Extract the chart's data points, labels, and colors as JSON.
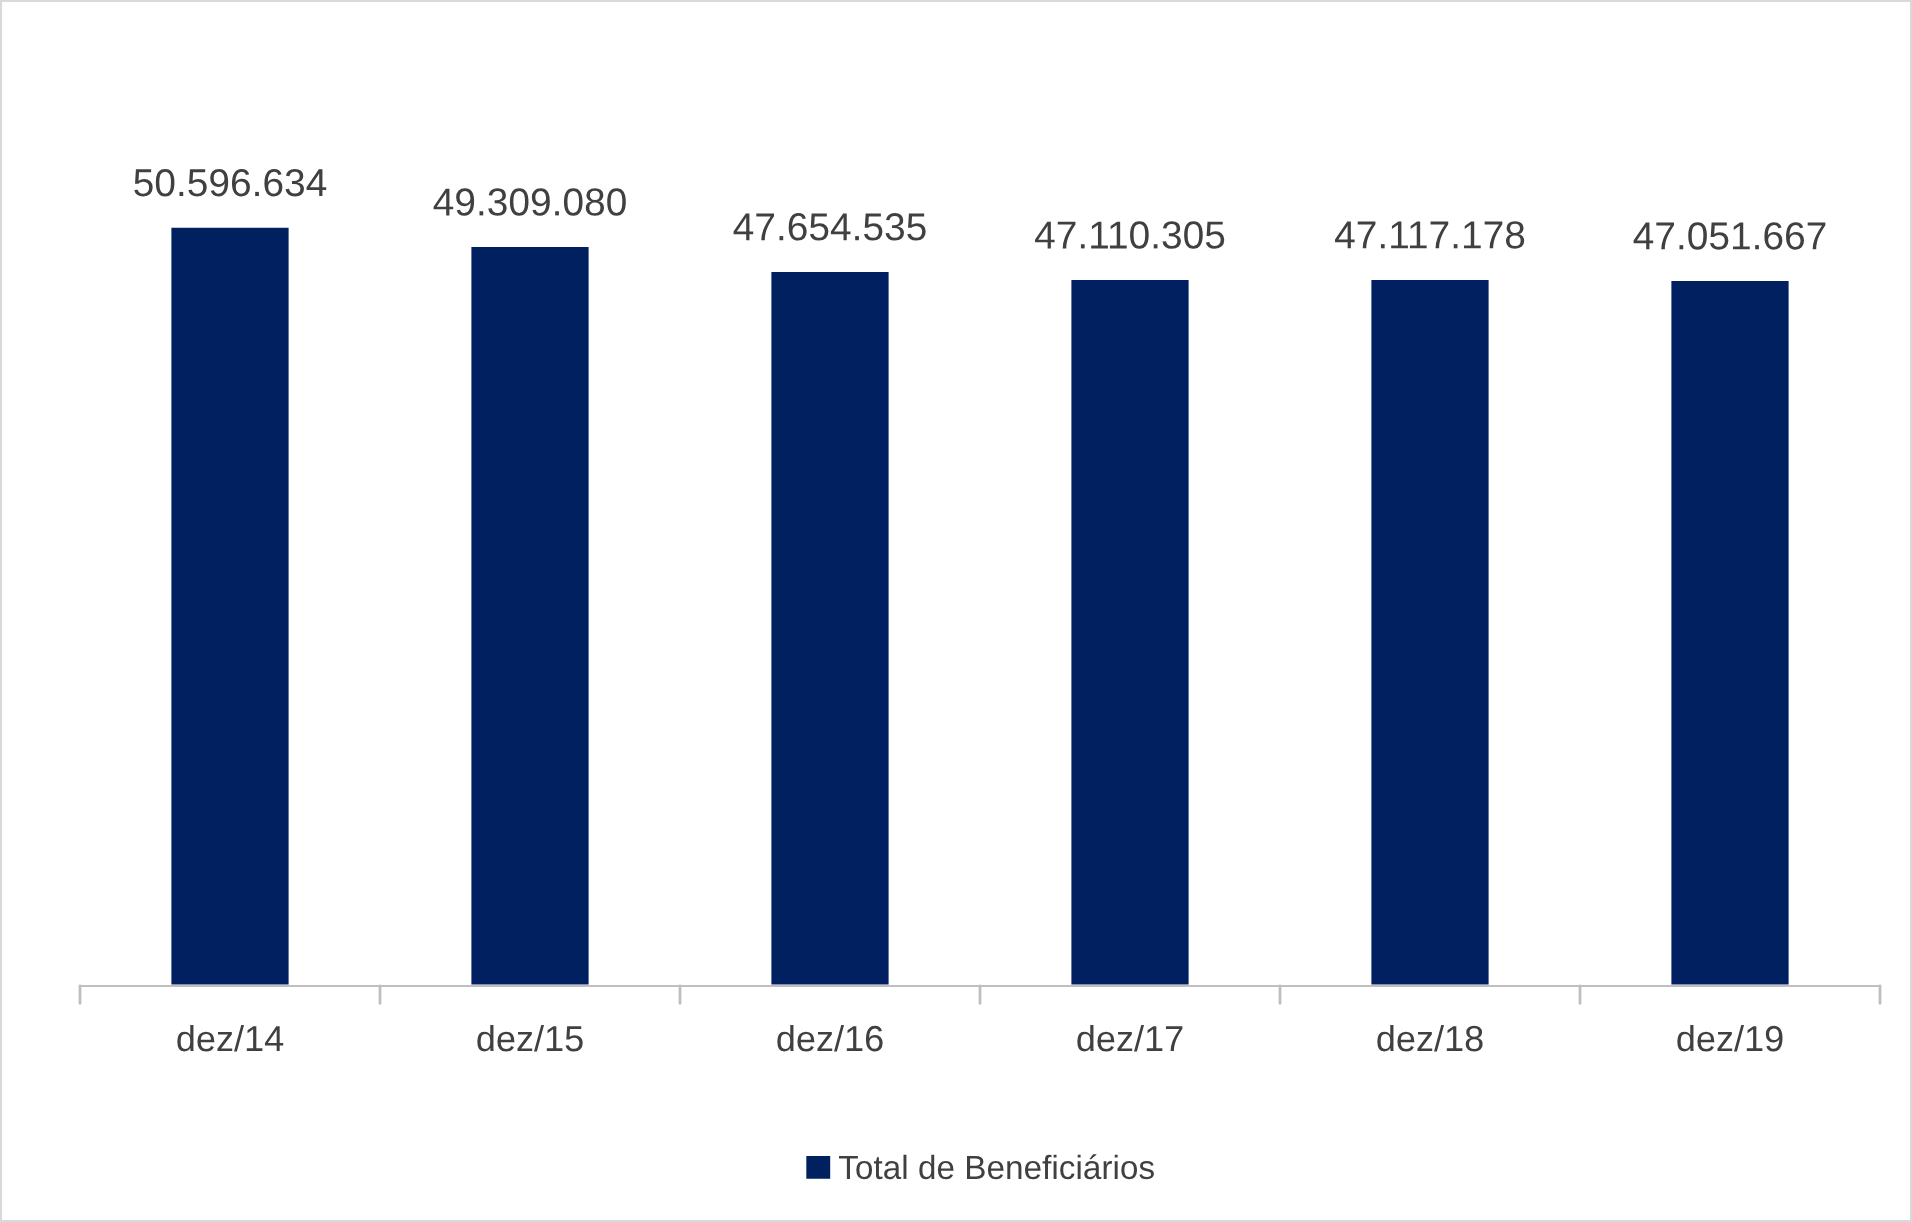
{
  "chart_data": {
    "type": "bar",
    "categories": [
      "dez/14",
      "dez/15",
      "dez/16",
      "dez/17",
      "dez/18",
      "dez/19"
    ],
    "series": [
      {
        "name": "Total de Beneficiários",
        "color": "#002060",
        "values": [
          50596634,
          49309080,
          47654535,
          47110305,
          47117178,
          47051667
        ],
        "value_labels": [
          "50.596.634",
          "49.309.080",
          "47.654.535",
          "47.110.305",
          "47.117.178",
          "47.051.667"
        ]
      }
    ],
    "legend": "bottom",
    "grid": false,
    "tick_labels": "x"
  }
}
